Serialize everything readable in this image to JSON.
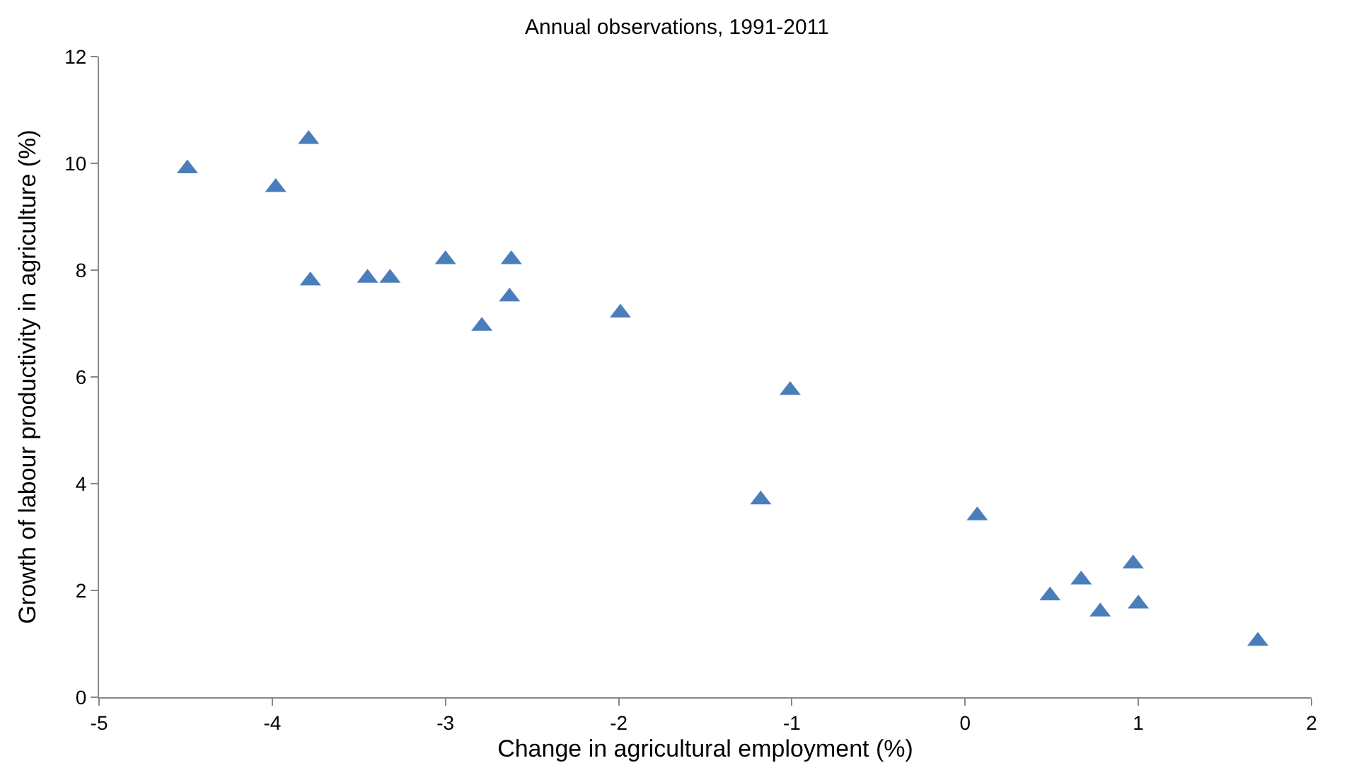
{
  "chart_data": {
    "type": "scatter",
    "title": "Annual observations, 1991-2011",
    "xlabel": "Change in agricultural employment (%)",
    "ylabel": "Growth of labour productivity in agriculture (%)",
    "x": [
      -4.49,
      -3.98,
      -3.79,
      -3.78,
      -3.45,
      -3.32,
      -3.0,
      -2.62,
      -2.63,
      -2.79,
      -1.99,
      -1.01,
      -1.18,
      0.07,
      0.49,
      0.67,
      0.78,
      0.97,
      1.0,
      1.69
    ],
    "series": [
      {
        "color": "#4a7ebb",
        "values": [
          9.9,
          9.55,
          10.45,
          7.8,
          7.85,
          7.85,
          8.2,
          8.2,
          7.5,
          6.95,
          7.2,
          5.75,
          3.7,
          3.4,
          1.9,
          2.2,
          1.6,
          2.5,
          1.75,
          1.05
        ]
      }
    ],
    "xlim": [
      -5,
      2
    ],
    "xticks": [
      -5,
      -4,
      -3,
      -2,
      -1,
      0,
      1,
      2
    ],
    "ylim": [
      0,
      12
    ],
    "yticks": [
      0,
      2,
      4,
      6,
      8,
      10,
      12
    ],
    "legend": false,
    "marker": "triangle"
  }
}
